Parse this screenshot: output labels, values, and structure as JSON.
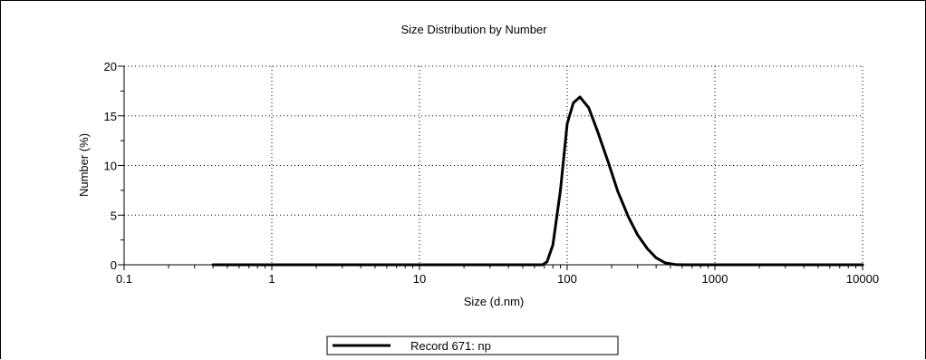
{
  "chart_data": {
    "type": "line",
    "title": "Size Distribution by Number",
    "xlabel": "Size (d.nm)",
    "ylabel": "Number (%)",
    "x_scale": "log",
    "xlim": [
      0.1,
      10000
    ],
    "ylim": [
      0,
      20
    ],
    "x_ticks": [
      0.1,
      1,
      10,
      100,
      1000,
      10000
    ],
    "x_tick_labels": [
      "0.1",
      "1",
      "10",
      "100",
      "1000",
      "10000"
    ],
    "y_ticks": [
      0,
      5,
      10,
      15,
      20
    ],
    "y_tick_labels": [
      "0",
      "5",
      "10",
      "15",
      "20"
    ],
    "grid": true,
    "legend_position": "bottom-center",
    "series": [
      {
        "name": "Record 671: np",
        "color": "#000000",
        "x": [
          0.4,
          68,
          73,
          80,
          90,
          100,
          110,
          122,
          140,
          160,
          190,
          220,
          260,
          300,
          350,
          400,
          460,
          540,
          620,
          10000
        ],
        "y": [
          0,
          0,
          0.3,
          2,
          7.5,
          14.2,
          16.3,
          16.9,
          15.8,
          13.5,
          10.3,
          7.4,
          4.8,
          3.0,
          1.6,
          0.7,
          0.2,
          0.02,
          0,
          0
        ]
      }
    ]
  }
}
